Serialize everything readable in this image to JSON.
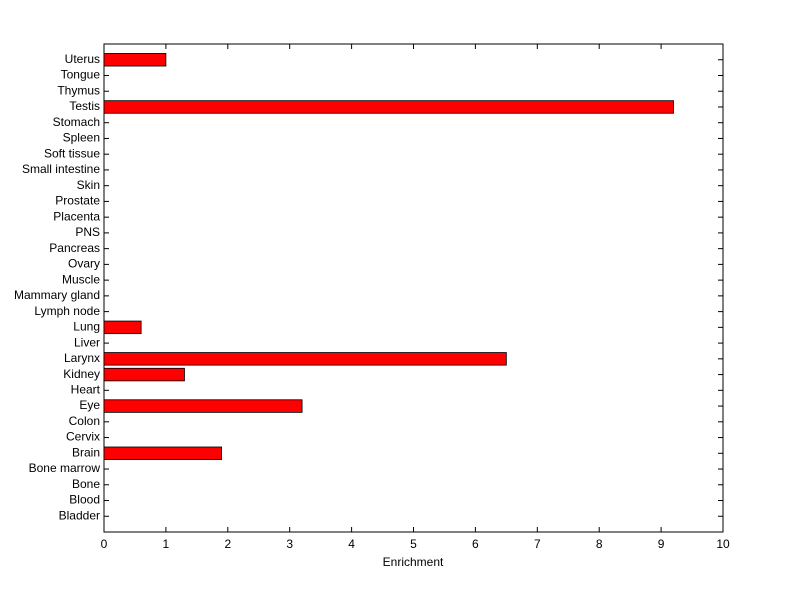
{
  "chart_data": {
    "type": "barh",
    "xlabel": "Enrichment",
    "categories": [
      "Bladder",
      "Blood",
      "Bone",
      "Bone marrow",
      "Brain",
      "Cervix",
      "Colon",
      "Eye",
      "Heart",
      "Kidney",
      "Larynx",
      "Liver",
      "Lung",
      "Lymph node",
      "Mammary gland",
      "Muscle",
      "Ovary",
      "Pancreas",
      "PNS",
      "Placenta",
      "Prostate",
      "Skin",
      "Small intestine",
      "Soft tissue",
      "Spleen",
      "Stomach",
      "Testis",
      "Thymus",
      "Tongue",
      "Uterus"
    ],
    "values": [
      0,
      0,
      0,
      0,
      1.9,
      0,
      0,
      3.2,
      0,
      1.3,
      6.5,
      0,
      0.6,
      0,
      0,
      0,
      0,
      0,
      0,
      0,
      0,
      0,
      0,
      0,
      0,
      0,
      9.2,
      0,
      0,
      1.0
    ],
    "color": "#ff0000",
    "xlim": [
      0,
      10
    ],
    "xticks": [
      0,
      1,
      2,
      3,
      4,
      5,
      6,
      7,
      8,
      9,
      10
    ],
    "grid": false
  }
}
